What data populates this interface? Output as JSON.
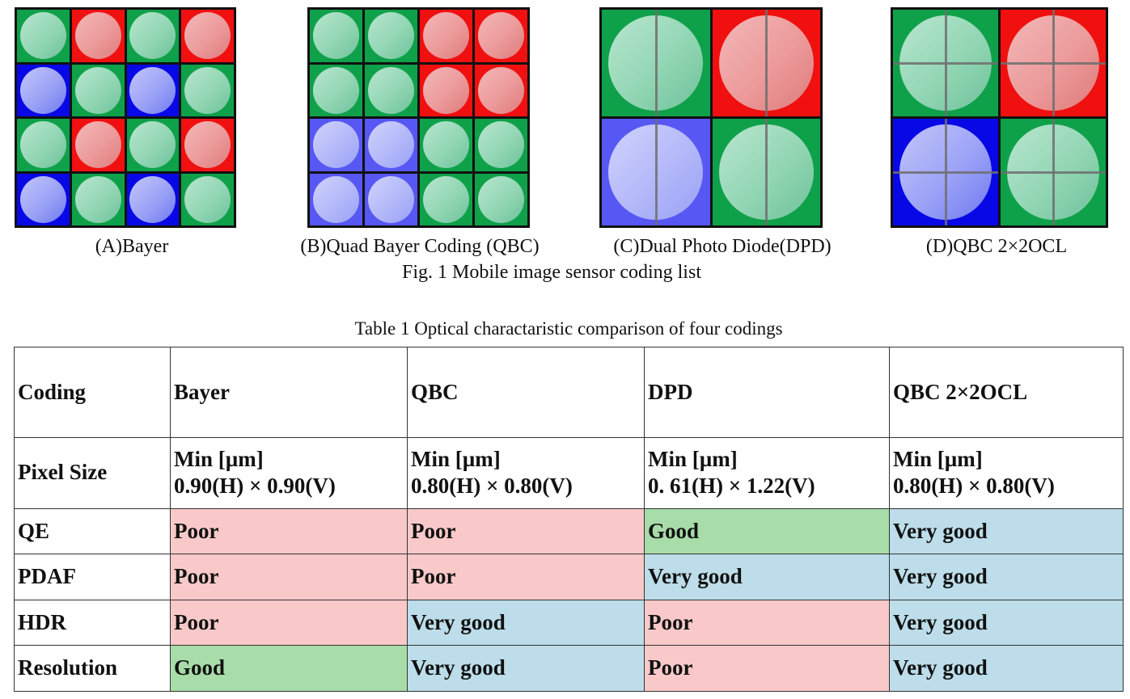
{
  "figures": [
    {
      "id": "bayer",
      "caption": "(A)Bayer",
      "size": 4,
      "split": "none",
      "cells": [
        [
          "G",
          "R",
          "G",
          "R"
        ],
        [
          "B",
          "G",
          "B",
          "G"
        ],
        [
          "G",
          "R",
          "G",
          "R"
        ],
        [
          "B",
          "G",
          "B",
          "G"
        ]
      ]
    },
    {
      "id": "qbc",
      "caption": "(B)Quad Bayer Coding (QBC)",
      "size": 4,
      "split": "none",
      "cells": [
        [
          "G",
          "G",
          "R",
          "R"
        ],
        [
          "G",
          "G",
          "R",
          "R"
        ],
        [
          "LB",
          "LB",
          "G",
          "G"
        ],
        [
          "LB",
          "LB",
          "G",
          "G"
        ]
      ]
    },
    {
      "id": "dpd",
      "caption": "(C)Dual Photo Diode(DPD)",
      "size": 2,
      "split": "vertical",
      "cells": [
        [
          "G",
          "R"
        ],
        [
          "LB",
          "G"
        ]
      ]
    },
    {
      "id": "qbc-ocl",
      "caption": "(D)QBC 2×2OCL",
      "size": 2,
      "split": "cross",
      "cells": [
        [
          "G",
          "R"
        ],
        [
          "B",
          "G"
        ]
      ]
    }
  ],
  "colors": {
    "G": "#0fa14a",
    "R": "#f01010",
    "B": "#0808e6",
    "LB": "#5757f3",
    "poor": "#f9c9c9",
    "good": "#a8dca8",
    "very_good": "#bcdde9"
  },
  "figure_caption": "Fig. 1 Mobile image sensor coding list",
  "table_caption": "Table 1 Optical charactaristic comparison of four codings",
  "table": {
    "header": [
      "Coding",
      "Bayer",
      "QBC",
      "DPD",
      "QBC 2×2OCL"
    ],
    "pixel_size": {
      "label": "Pixel Size",
      "unit": "Min [µm]",
      "values": [
        "0.90(H) × 0.90(V)",
        "0.80(H) × 0.80(V)",
        "0. 61(H) × 1.22(V)",
        "0.80(H) × 0.80(V)"
      ]
    },
    "rows": [
      {
        "label": "QE",
        "values": [
          "Poor",
          "Poor",
          "Good",
          "Very good"
        ]
      },
      {
        "label": "PDAF",
        "values": [
          "Poor",
          "Poor",
          "Very good",
          "Very good"
        ]
      },
      {
        "label": "HDR",
        "values": [
          "Poor",
          "Very good",
          "Poor",
          "Very good"
        ]
      },
      {
        "label": "Resolution",
        "values": [
          "Good",
          "Very good",
          "Poor",
          "Very good"
        ]
      }
    ]
  }
}
